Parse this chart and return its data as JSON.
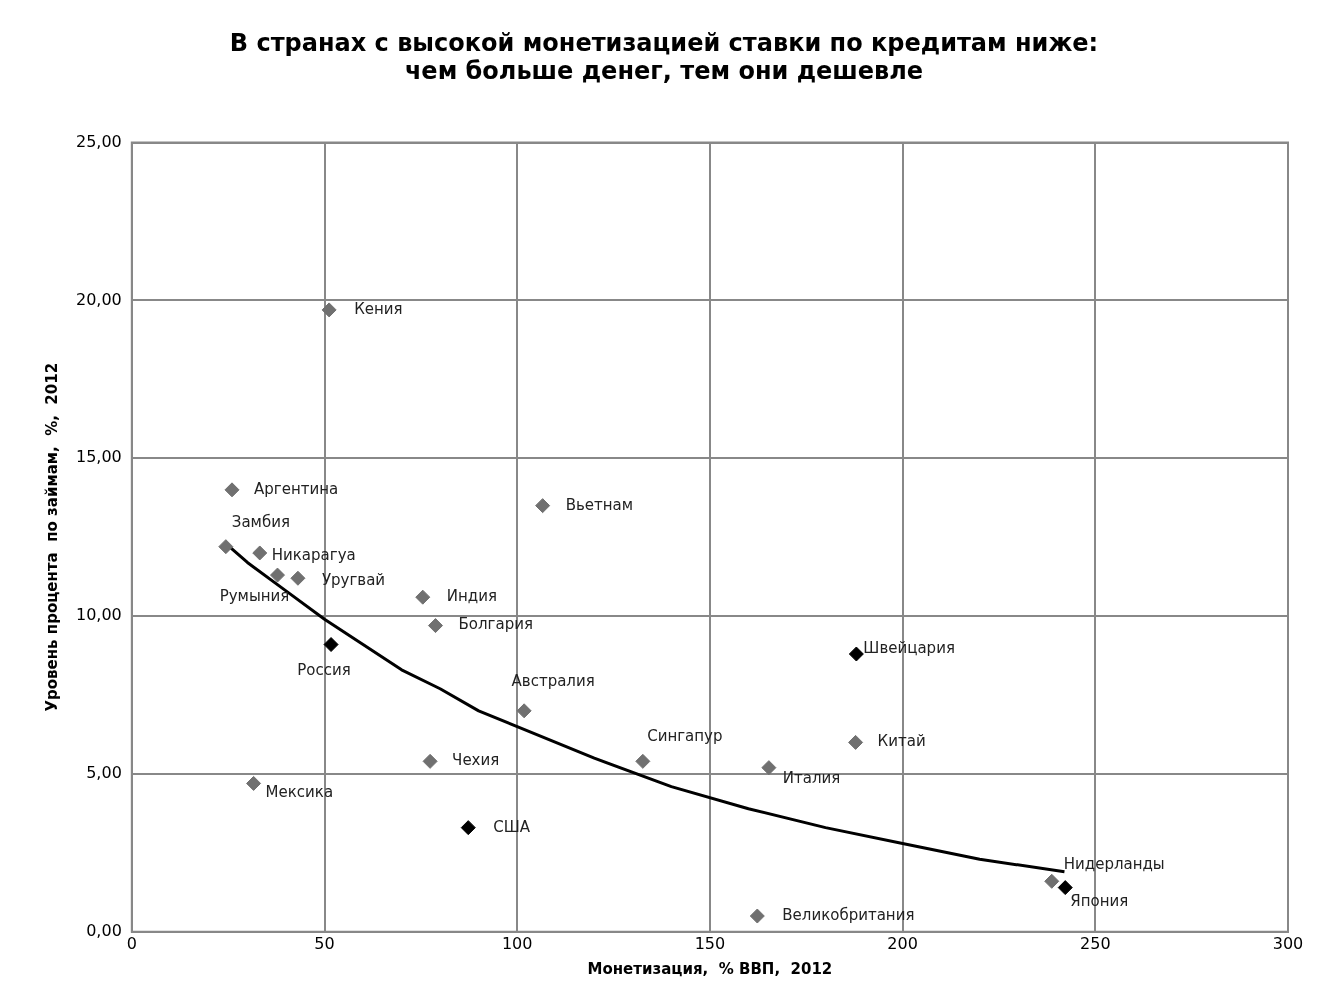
{
  "chart_data": {
    "type": "scatter",
    "title": "В странах с высокой монетизацией ставки по кредитам ниже:\nчем больше денег, тем они дешевле",
    "xlabel": "Монетизация,  % ВВП,  2012",
    "ylabel": "Уровень процента  по займам,  %,  2012",
    "xlim": [
      0,
      300
    ],
    "xticks": [
      0,
      50,
      100,
      150,
      200,
      250,
      300
    ],
    "ylim": [
      0,
      25
    ],
    "yticks": [
      {
        "value": 0,
        "label": "0,00"
      },
      {
        "value": 5,
        "label": "5,00"
      },
      {
        "value": 10,
        "label": "10,00"
      },
      {
        "value": 15,
        "label": "15,00"
      },
      {
        "value": 20,
        "label": "20,00"
      },
      {
        "value": 25,
        "label": "25,00"
      }
    ],
    "grid": true,
    "legend": false,
    "marker": "diamond",
    "series": [
      {
        "x": [
          51.2,
          26,
          106.6,
          24.4,
          33.2,
          37.8,
          43.1,
          75.5,
          78.8,
          51.7,
          101.8,
          188,
          187.8,
          132.6,
          77.4,
          165.3,
          31.6,
          87.3,
          162.3,
          238.7,
          242.2
        ],
        "values": [
          19.7,
          14.0,
          13.5,
          12.2,
          12.0,
          11.3,
          11.2,
          10.6,
          9.7,
          9.1,
          7.0,
          8.8,
          6.0,
          5.4,
          5.4,
          5.2,
          4.7,
          3.3,
          0.5,
          1.6,
          1.4
        ],
        "colors": [
          "#707070",
          "#707070",
          "#707070",
          "#707070",
          "#707070",
          "#707070",
          "#707070",
          "#707070",
          "#707070",
          "#000000",
          "#707070",
          "#000000",
          "#707070",
          "#707070",
          "#707070",
          "#707070",
          "#707070",
          "#000000",
          "#707070",
          "#707070",
          "#000000"
        ]
      },
      {
        "type": "line",
        "marker": "none",
        "color": "#000000",
        "x": [
          24.4,
          30,
          40,
          50,
          60,
          70,
          80,
          90,
          100,
          120,
          140,
          160,
          180,
          200,
          220,
          242
        ],
        "values": [
          12.3,
          11.7,
          10.8,
          9.9,
          9.1,
          8.3,
          7.7,
          7.0,
          6.5,
          5.5,
          4.6,
          3.9,
          3.3,
          2.8,
          2.3,
          1.9
        ]
      }
    ],
    "annotations": [
      {
        "text": "Кения",
        "x": 51.2,
        "y": 19.7
      },
      {
        "text": "Аргентина",
        "x": 26,
        "y": 14.0
      },
      {
        "text": "Вьетнам",
        "x": 106.6,
        "y": 13.5
      },
      {
        "text": "Замбия",
        "x": 24.4,
        "y": 12.2
      },
      {
        "text": "Никарагуа",
        "x": 33.2,
        "y": 12.0
      },
      {
        "text": "Румыния",
        "x": 37.8,
        "y": 11.3
      },
      {
        "text": "Уругвай",
        "x": 43.1,
        "y": 11.2
      },
      {
        "text": "Индия",
        "x": 75.5,
        "y": 10.6
      },
      {
        "text": "Болгария",
        "x": 78.8,
        "y": 9.7
      },
      {
        "text": "Россия",
        "x": 51.7,
        "y": 9.1
      },
      {
        "text": "Австралия",
        "x": 101.8,
        "y": 7.0
      },
      {
        "text": "Швейцария",
        "x": 188,
        "y": 8.8
      },
      {
        "text": "Китай",
        "x": 187.8,
        "y": 6.0
      },
      {
        "text": "Сингапур",
        "x": 132.6,
        "y": 5.4
      },
      {
        "text": "Чехия",
        "x": 77.4,
        "y": 5.4
      },
      {
        "text": "Италия",
        "x": 165.3,
        "y": 5.2
      },
      {
        "text": "Мексика",
        "x": 31.6,
        "y": 4.7
      },
      {
        "text": "США",
        "x": 87.3,
        "y": 3.3
      },
      {
        "text": "Великобритания",
        "x": 162.3,
        "y": 0.5
      },
      {
        "text": "Нидерланды",
        "x": 238.7,
        "y": 1.6
      },
      {
        "text": "Япония",
        "x": 242.2,
        "y": 1.4
      }
    ]
  }
}
